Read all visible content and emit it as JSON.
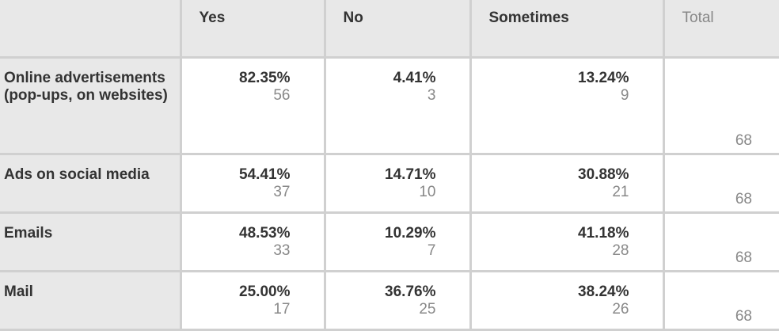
{
  "table": {
    "columns": [
      "Yes",
      "No",
      "Sometimes",
      "Total"
    ],
    "rows": [
      {
        "label": "Online advertisements (pop-ups, on websites)",
        "cells": [
          {
            "pct": "82.35%",
            "count": "56"
          },
          {
            "pct": "4.41%",
            "count": "3"
          },
          {
            "pct": "13.24%",
            "count": "9"
          }
        ],
        "total": "68"
      },
      {
        "label": "Ads on social media",
        "cells": [
          {
            "pct": "54.41%",
            "count": "37"
          },
          {
            "pct": "14.71%",
            "count": "10"
          },
          {
            "pct": "30.88%",
            "count": "21"
          }
        ],
        "total": "68"
      },
      {
        "label": "Emails",
        "cells": [
          {
            "pct": "48.53%",
            "count": "33"
          },
          {
            "pct": "10.29%",
            "count": "7"
          },
          {
            "pct": "41.18%",
            "count": "28"
          }
        ],
        "total": "68"
      },
      {
        "label": "Mail",
        "cells": [
          {
            "pct": "25.00%",
            "count": "17"
          },
          {
            "pct": "36.76%",
            "count": "25"
          },
          {
            "pct": "38.24%",
            "count": "26"
          }
        ],
        "total": "68"
      }
    ]
  },
  "colors": {
    "header_bg": "#e8e8e8",
    "border": "#d0d0d0",
    "pct_text": "#333333",
    "count_text": "#888888"
  }
}
